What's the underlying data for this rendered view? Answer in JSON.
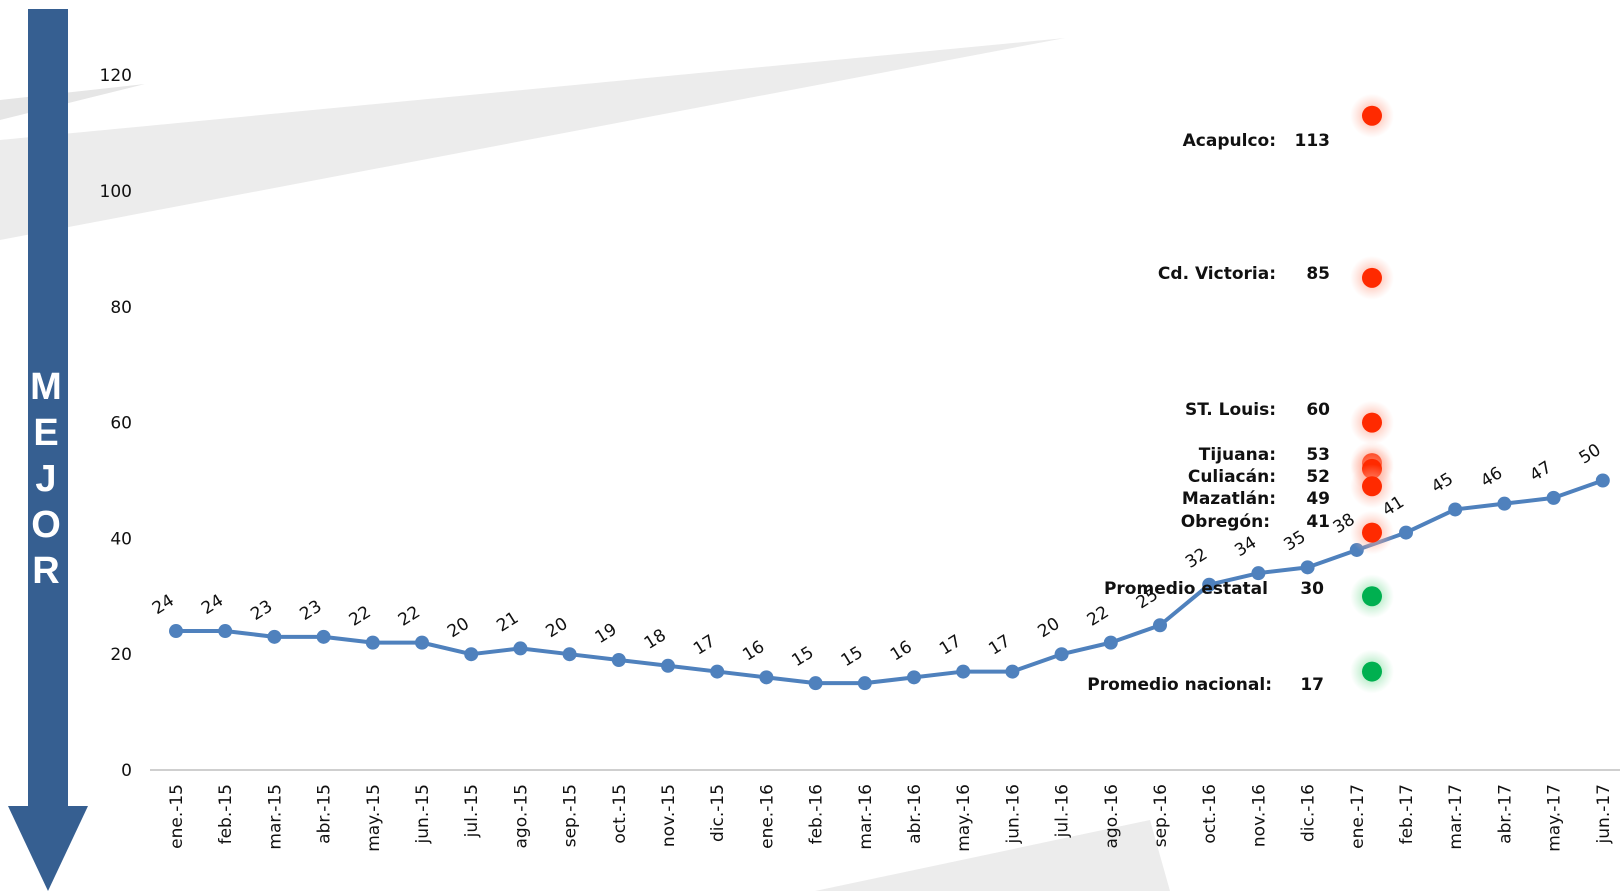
{
  "side_arrow": {
    "label": [
      "M",
      "E",
      "J",
      "O",
      "R"
    ],
    "color": "#365f91"
  },
  "colors": {
    "line": "#4f81bd",
    "bad": "#ff2a00",
    "good": "#00b050"
  },
  "chart_data": {
    "type": "line",
    "title": "",
    "xlabel": "",
    "ylabel": "",
    "ylim": [
      0,
      120
    ],
    "yticks": [
      0,
      20,
      40,
      60,
      80,
      100,
      120
    ],
    "categories": [
      "ene.-15",
      "feb.-15",
      "mar.-15",
      "abr.-15",
      "may.-15",
      "jun.-15",
      "jul.-15",
      "ago.-15",
      "sep.-15",
      "oct.-15",
      "nov.-15",
      "dic.-15",
      "ene.-16",
      "feb.-16",
      "mar.-16",
      "abr.-16",
      "may.-16",
      "jun.-16",
      "jul.-16",
      "ago.-16",
      "sep.-16",
      "oct.-16",
      "nov.-16",
      "dic.-16",
      "ene.-17",
      "feb.-17",
      "mar.-17",
      "abr.-17",
      "may.-17",
      "jun.-17"
    ],
    "series": [
      {
        "values": [
          24,
          24,
          23,
          23,
          22,
          22,
          20,
          21,
          20,
          19,
          18,
          17,
          16,
          15,
          15,
          16,
          17,
          17,
          20,
          22,
          25,
          32,
          34,
          35,
          38,
          41,
          45,
          46,
          47,
          50
        ]
      }
    ],
    "comparisons": [
      {
        "name": "Acapulco:",
        "value": 113,
        "status": "bad"
      },
      {
        "name": "Cd. Victoria:",
        "value": 85,
        "status": "bad"
      },
      {
        "name": "ST. Louis:",
        "value": 60,
        "status": "bad"
      },
      {
        "name": "Tijuana:",
        "value": 53,
        "status": "bad"
      },
      {
        "name": "Culiacán:",
        "value": 52,
        "status": "bad"
      },
      {
        "name": "Mazatlán:",
        "value": 49,
        "status": "bad"
      },
      {
        "name": "Obregón:",
        "value": 41,
        "status": "bad"
      },
      {
        "name": "Promedio estatal",
        "value": 30,
        "status": "good"
      },
      {
        "name": "Promedio nacional:",
        "value": 17,
        "status": "good"
      }
    ],
    "grid": false,
    "legend": "none"
  }
}
